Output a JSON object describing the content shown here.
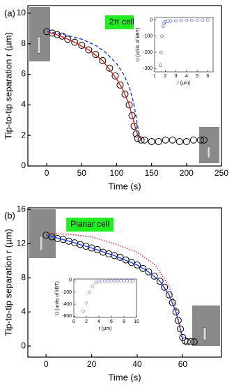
{
  "chart_data": [
    {
      "type": "line",
      "panel_label": "(a)",
      "annotation": "2π cell",
      "x_label": "Time (s)",
      "y_label": "Tip-to-tip separation r (µm)",
      "xlim": [
        -27,
        250
      ],
      "xticks": [
        0,
        50,
        100,
        150,
        200,
        250
      ],
      "ylim": [
        0,
        10.5
      ],
      "yticks": [
        0,
        2,
        4,
        6,
        8,
        10
      ],
      "series": [
        {
          "style": "markers",
          "color": "#000000",
          "x": [
            0,
            8,
            15,
            22,
            30,
            40,
            50,
            60,
            70,
            80,
            90,
            98,
            105,
            112,
            118,
            122,
            125,
            128,
            130,
            135,
            140,
            150,
            160,
            170,
            180,
            190,
            200,
            210,
            220,
            225
          ],
          "values": [
            8.8,
            8.7,
            8.6,
            8.5,
            8.3,
            8.1,
            7.9,
            7.6,
            7.3,
            6.9,
            6.4,
            5.9,
            5.3,
            4.7,
            4.0,
            3.3,
            2.6,
            2.1,
            1.8,
            1.7,
            1.7,
            1.6,
            1.6,
            1.7,
            1.7,
            1.6,
            1.6,
            1.7,
            1.7,
            1.7
          ]
        },
        {
          "style": "solid",
          "color": "#d62020",
          "x": [
            0,
            20,
            40,
            60,
            80,
            100,
            110,
            118,
            124,
            128,
            132
          ],
          "values": [
            8.8,
            8.5,
            8.1,
            7.6,
            6.9,
            5.7,
            4.9,
            4.0,
            3.0,
            2.3,
            1.8
          ]
        },
        {
          "style": "dashed",
          "color": "#1f3fd6",
          "x": [
            0,
            25,
            50,
            70,
            85,
            100,
            110,
            118,
            124,
            128,
            132
          ],
          "values": [
            8.8,
            8.6,
            8.3,
            7.9,
            7.4,
            6.7,
            6.0,
            5.2,
            4.2,
            3.2,
            2.0
          ]
        }
      ]
    },
    {
      "type": "line",
      "x_label": "r (µm)",
      "y_label": "U (units of kBT)",
      "xlim": [
        1,
        6.5
      ],
      "xticks": [
        1,
        2,
        3,
        4,
        5,
        6
      ],
      "ylim": [
        -320,
        15
      ],
      "yticks": [
        0,
        -100,
        -200,
        -300
      ],
      "series": [
        {
          "style": "markers",
          "color": "#3a4bd8",
          "x": [
            1.55,
            1.6,
            1.7,
            1.8,
            1.9,
            2.0,
            2.25,
            2.5,
            3.0,
            3.5,
            4.0,
            4.5,
            5.0,
            5.5,
            6.0
          ],
          "values": [
            -280,
            -200,
            -100,
            -40,
            -20,
            -12,
            -9,
            -8,
            -6,
            -5,
            -4,
            -3,
            -2,
            -2,
            -1
          ]
        }
      ]
    },
    {
      "type": "line",
      "panel_label": "(b)",
      "annotation": "Planar cell",
      "x_label": "Time (s)",
      "y_label": "Tip-to-tip separation r (µm)",
      "xlim": [
        -8,
        77
      ],
      "xticks": [
        0,
        20,
        40,
        60
      ],
      "ylim": [
        -1.3,
        16.2
      ],
      "yticks": [
        0,
        4,
        8,
        12,
        16
      ],
      "series": [
        {
          "style": "markers",
          "color": "#000000",
          "x": [
            0,
            2.5,
            5,
            7.5,
            10,
            12.5,
            15,
            17.5,
            20,
            22.5,
            25,
            27.5,
            30,
            32.5,
            35,
            37.5,
            40,
            42.5,
            45,
            47.5,
            50,
            52,
            54,
            55.5,
            57,
            58,
            59,
            60,
            61,
            62,
            63.5,
            65
          ],
          "values": [
            13.0,
            12.8,
            12.6,
            12.5,
            12.3,
            12.1,
            11.9,
            11.7,
            11.5,
            11.3,
            11.0,
            10.8,
            10.6,
            10.4,
            10.1,
            9.8,
            9.5,
            9.1,
            8.7,
            8.2,
            7.6,
            6.9,
            6.0,
            5.1,
            4.0,
            3.0,
            2.0,
            1.0,
            0.6,
            0.5,
            0.5,
            0.5
          ]
        },
        {
          "style": "solid",
          "color": "#1f3fd6",
          "x": [
            0,
            10,
            20,
            30,
            40,
            45,
            50,
            54,
            57,
            59,
            60
          ],
          "values": [
            13.0,
            12.3,
            11.5,
            10.6,
            9.5,
            8.7,
            7.6,
            6.0,
            4.0,
            2.0,
            0.8
          ]
        },
        {
          "style": "dotted",
          "color": "#e02020",
          "x": [
            0,
            10,
            20,
            30,
            40,
            48,
            54,
            57.5,
            59.5
          ],
          "values": [
            13.2,
            13.1,
            12.8,
            12.0,
            11.0,
            9.5,
            7.0,
            4.0,
            1.0
          ]
        }
      ]
    },
    {
      "type": "line",
      "x_label": "r (µm)",
      "y_label": "U (units of kBT)",
      "xlim": [
        0,
        10
      ],
      "xticks": [
        0,
        2,
        4,
        6,
        8,
        10
      ],
      "ylim": [
        -620,
        20
      ],
      "yticks": [
        0,
        -200,
        -400,
        -600
      ],
      "series": [
        {
          "style": "markers",
          "color": "#6b78d8",
          "x": [
            1.5,
            2.0,
            2.5,
            3.0,
            3.5,
            4.0,
            4.5,
            5.0,
            5.5,
            6.0,
            6.5,
            7.0,
            7.5,
            8.0,
            8.5,
            9.0,
            9.5
          ],
          "values": [
            -520,
            -380,
            -200,
            -100,
            -40,
            -20,
            -16,
            -15,
            -13,
            -12,
            -11,
            -10,
            -10,
            -10,
            -10,
            -10,
            -10
          ]
        }
      ]
    }
  ]
}
